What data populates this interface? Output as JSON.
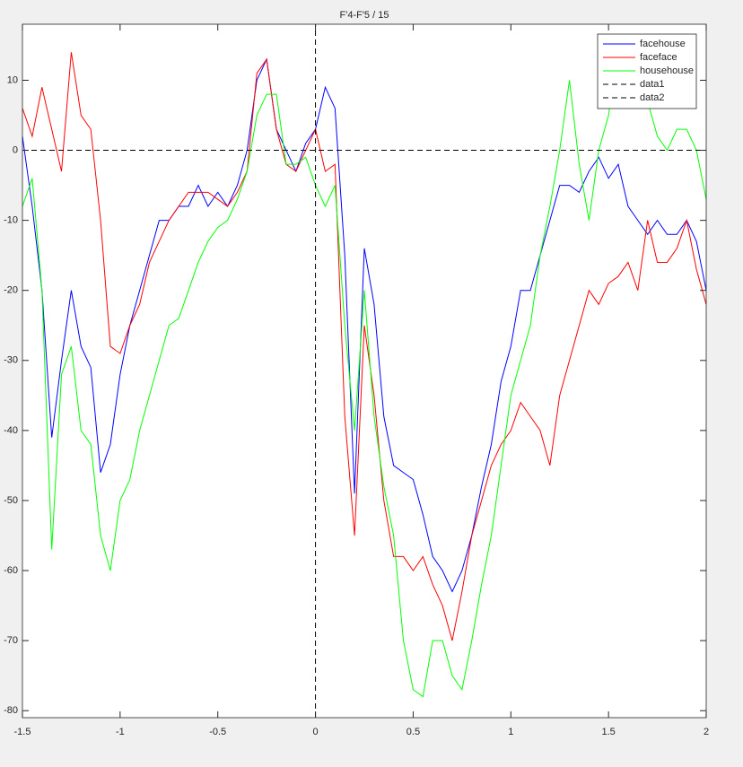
{
  "chart_data": {
    "type": "line",
    "title": "F'4-F'5 / 15",
    "x": [
      -1.5,
      -1.45,
      -1.4,
      -1.35,
      -1.3,
      -1.25,
      -1.2,
      -1.15,
      -1.1,
      -1.05,
      -1.0,
      -0.95,
      -0.9,
      -0.85,
      -0.8,
      -0.75,
      -0.7,
      -0.65,
      -0.6,
      -0.55,
      -0.5,
      -0.45,
      -0.4,
      -0.35,
      -0.3,
      -0.25,
      -0.2,
      -0.15,
      -0.1,
      -0.05,
      0,
      0.05,
      0.1,
      0.15,
      0.2,
      0.25,
      0.3,
      0.35,
      0.4,
      0.45,
      0.5,
      0.55,
      0.6,
      0.65,
      0.7,
      0.75,
      0.8,
      0.85,
      0.9,
      0.95,
      1.0,
      1.05,
      1.1,
      1.15,
      1.2,
      1.25,
      1.3,
      1.35,
      1.4,
      1.45,
      1.5,
      1.55,
      1.6,
      1.65,
      1.7,
      1.75,
      1.8,
      1.85,
      1.9,
      1.95,
      2.0
    ],
    "series": [
      {
        "name": "facehouse",
        "color": "#0000ff",
        "values": [
          2,
          -8,
          -20,
          -41,
          -30,
          -20,
          -28,
          -31,
          -46,
          -42,
          -32,
          -25,
          -20,
          -15,
          -10,
          -10,
          -8,
          -8,
          -5,
          -8,
          -6,
          -8,
          -5,
          0,
          10,
          13,
          3,
          0,
          -3,
          1,
          3,
          9,
          6,
          -15,
          -49,
          -14,
          -22,
          -38,
          -45,
          -46,
          -47,
          -52,
          -58,
          -60,
          -63,
          -60,
          -55,
          -48,
          -42,
          -33,
          -28,
          -20,
          -20,
          -15,
          -10,
          -5,
          -5,
          -6,
          -3,
          -1,
          -4,
          -2,
          -8,
          -10,
          -12,
          -10,
          -12,
          -12,
          -10,
          -13,
          -20
        ]
      },
      {
        "name": "faceface",
        "color": "#ff0000",
        "values": [
          6,
          2,
          9,
          3,
          -3,
          14,
          5,
          3,
          -10,
          -28,
          -29,
          -25,
          -22,
          -16,
          -13,
          -10,
          -8,
          -6,
          -6,
          -6,
          -7,
          -8,
          -6,
          -3,
          11,
          13,
          3,
          -2,
          -3,
          0,
          3,
          -3,
          -2,
          -38,
          -55,
          -25,
          -35,
          -50,
          -58,
          -58,
          -60,
          -58,
          -62,
          -65,
          -70,
          -63,
          -55,
          -50,
          -45,
          -42,
          -40,
          -36,
          -38,
          -40,
          -45,
          -35,
          -30,
          -25,
          -20,
          -22,
          -19,
          -18,
          -16,
          -20,
          -10,
          -16,
          -16,
          -14,
          -10,
          -17,
          -22
        ]
      },
      {
        "name": "househouse",
        "color": "#00ff00",
        "values": [
          -8,
          -4,
          -20,
          -57,
          -32,
          -28,
          -40,
          -42,
          -55,
          -60,
          -50,
          -47,
          -40,
          -35,
          -30,
          -25,
          -24,
          -20,
          -16,
          -13,
          -11,
          -10,
          -7,
          -3,
          5,
          8,
          8,
          -2,
          -2,
          -1,
          -5,
          -8,
          -5,
          -25,
          -40,
          -20,
          -38,
          -48,
          -55,
          -70,
          -77,
          -78,
          -70,
          -70,
          -75,
          -77,
          -70,
          -62,
          -55,
          -45,
          -35,
          -30,
          -25,
          -15,
          -8,
          0,
          10,
          -2,
          -10,
          0,
          5,
          15,
          14,
          14,
          7,
          2,
          0,
          3,
          3,
          0,
          -7
        ]
      },
      {
        "name": "data1",
        "color": "#000000",
        "dashed": true,
        "x": [
          -1.5,
          2
        ],
        "values": [
          0,
          0
        ]
      },
      {
        "name": "data2",
        "color": "#000000",
        "dashed": true,
        "x": [
          0,
          0
        ],
        "values": [
          -81,
          18
        ]
      }
    ],
    "xlim": [
      -1.5,
      2
    ],
    "xticks": [
      -1.5,
      -1,
      -0.5,
      0,
      0.5,
      1,
      1.5,
      2
    ],
    "ylim": [
      -81,
      18
    ],
    "yticks": [
      -80,
      -70,
      -60,
      -50,
      -40,
      -30,
      -20,
      -10,
      0,
      10
    ],
    "grid": false,
    "legend": "northeast"
  }
}
